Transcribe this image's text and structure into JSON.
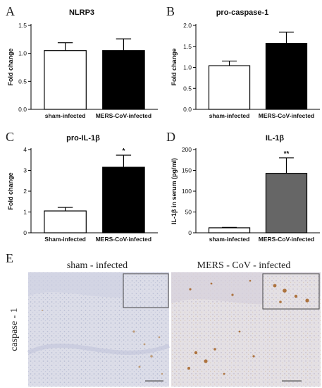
{
  "chart_data": [
    {
      "panel": "A",
      "type": "bar",
      "title": "NLRP3",
      "ylabel": "Fold change",
      "categories": [
        "sham-infected",
        "MERS-CoV-infected"
      ],
      "values": [
        1.05,
        1.05
      ],
      "errors": [
        0.14,
        0.21
      ],
      "fills": [
        "#ffffff",
        "#000000"
      ],
      "ylim": [
        0,
        1.5
      ],
      "yticks": [
        "0.0",
        "0.5",
        "1.0",
        "1.5"
      ],
      "significance": [
        "",
        ""
      ]
    },
    {
      "panel": "B",
      "type": "bar",
      "title": "pro-caspase-1",
      "ylabel": "Fold change",
      "categories": [
        "sham-infected",
        "MERS-CoV-infected"
      ],
      "values": [
        1.04,
        1.57
      ],
      "errors": [
        0.11,
        0.27
      ],
      "fills": [
        "#ffffff",
        "#000000"
      ],
      "ylim": [
        0,
        2.0
      ],
      "yticks": [
        "0.0",
        "0.5",
        "1.0",
        "1.5",
        "2.0"
      ],
      "significance": [
        "",
        ""
      ]
    },
    {
      "panel": "C",
      "type": "bar",
      "title": "pro-IL-1β",
      "ylabel": "Fold change",
      "categories": [
        "Sham-infected",
        "MERS-CoV-infected"
      ],
      "values": [
        1.05,
        3.15
      ],
      "errors": [
        0.17,
        0.58
      ],
      "fills": [
        "#ffffff",
        "#000000"
      ],
      "ylim": [
        0,
        4
      ],
      "yticks": [
        "0",
        "1",
        "2",
        "3",
        "4"
      ],
      "significance": [
        "",
        "*"
      ]
    },
    {
      "panel": "D",
      "type": "bar",
      "title": "IL-1β",
      "ylabel": "IL-1β  in serum (pg/ml)",
      "categories": [
        "sham-infected",
        "MERS-CoV-infected"
      ],
      "values": [
        12,
        143
      ],
      "errors": [
        1,
        37
      ],
      "fills": [
        "#ffffff",
        "#666666"
      ],
      "ylim": [
        0,
        200
      ],
      "yticks": [
        "0",
        "50",
        "100",
        "150",
        "200"
      ],
      "significance": [
        "",
        "**"
      ]
    }
  ],
  "panel_e": {
    "letter": "E",
    "row_label": "caspase - 1",
    "images": [
      {
        "label": "sham - infected"
      },
      {
        "label": "MERS - CoV - infected"
      }
    ]
  }
}
